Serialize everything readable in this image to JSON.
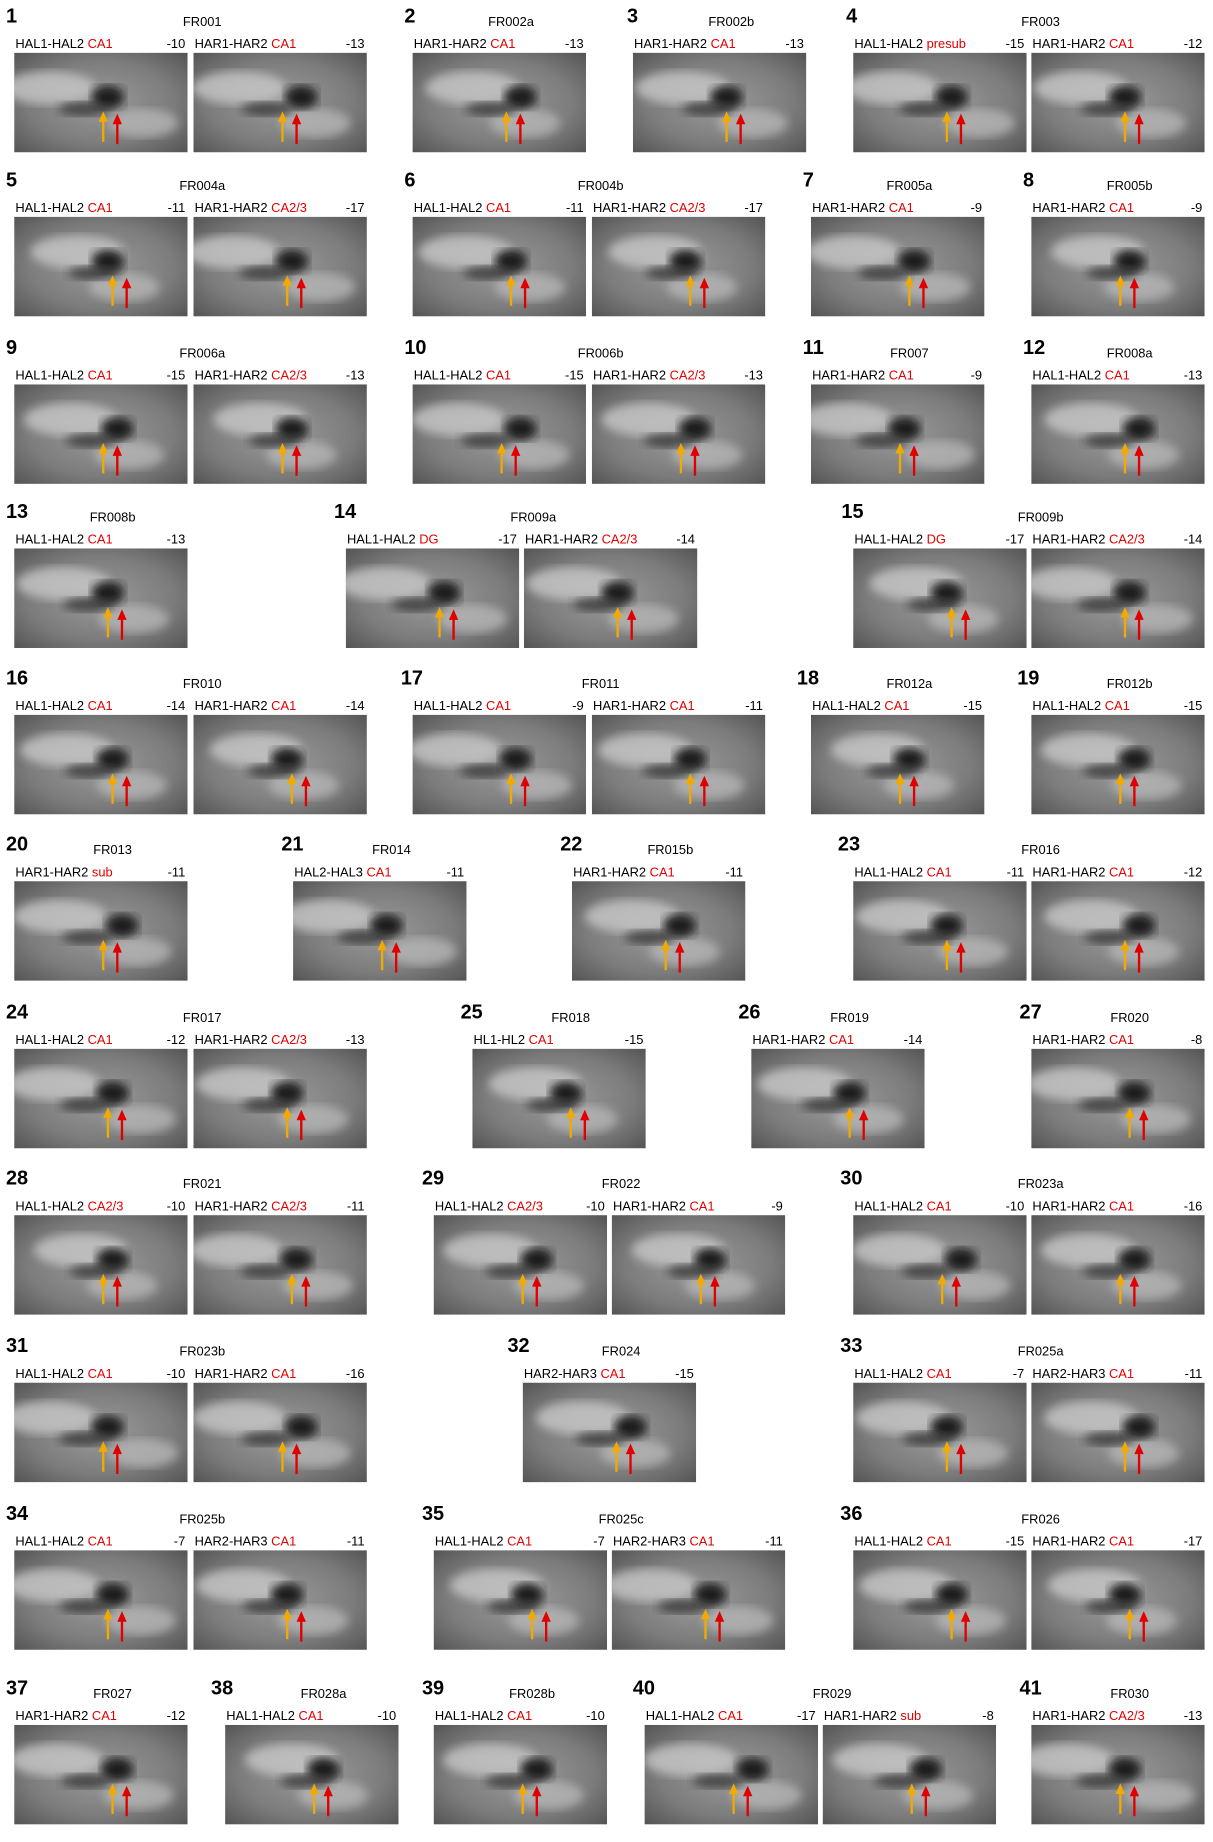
{
  "panels": [
    {
      "number": 1,
      "id": "FR001",
      "images": [
        {
          "contacts": "HAL1-HAL2",
          "region": "CA1",
          "value": -10
        },
        {
          "contacts": "HAR1-HAR2",
          "region": "CA1",
          "value": -13
        }
      ]
    },
    {
      "number": 2,
      "id": "FR002a",
      "images": [
        {
          "contacts": "HAR1-HAR2",
          "region": "CA1",
          "value": -13
        }
      ]
    },
    {
      "number": 3,
      "id": "FR002b",
      "images": [
        {
          "contacts": "HAR1-HAR2",
          "region": "CA1",
          "value": -13
        }
      ]
    },
    {
      "number": 4,
      "id": "FR003",
      "images": [
        {
          "contacts": "HAL1-HAL2",
          "region": "presub",
          "value": -15
        },
        {
          "contacts": "HAR1-HAR2",
          "region": "CA1",
          "value": -12
        }
      ]
    },
    {
      "number": 5,
      "id": "FR004a",
      "images": [
        {
          "contacts": "HAL1-HAL2",
          "region": "CA1",
          "value": -11
        },
        {
          "contacts": "HAR1-HAR2",
          "region": "CA2/3",
          "value": -17
        }
      ]
    },
    {
      "number": 6,
      "id": "FR004b",
      "images": [
        {
          "contacts": "HAL1-HAL2",
          "region": "CA1",
          "value": -11
        },
        {
          "contacts": "HAR1-HAR2",
          "region": "CA2/3",
          "value": -17
        }
      ]
    },
    {
      "number": 7,
      "id": "FR005a",
      "images": [
        {
          "contacts": "HAR1-HAR2",
          "region": "CA1",
          "value": -9
        }
      ]
    },
    {
      "number": 8,
      "id": "FR005b",
      "images": [
        {
          "contacts": "HAR1-HAR2",
          "region": "CA1",
          "value": -9
        }
      ]
    },
    {
      "number": 9,
      "id": "FR006a",
      "images": [
        {
          "contacts": "HAL1-HAL2",
          "region": "CA1",
          "value": -15
        },
        {
          "contacts": "HAR1-HAR2",
          "region": "CA2/3",
          "value": -13
        }
      ]
    },
    {
      "number": 10,
      "id": "FR006b",
      "images": [
        {
          "contacts": "HAL1-HAL2",
          "region": "CA1",
          "value": -15
        },
        {
          "contacts": "HAR1-HAR2",
          "region": "CA2/3",
          "value": -13
        }
      ]
    },
    {
      "number": 11,
      "id": "FR007",
      "images": [
        {
          "contacts": "HAR1-HAR2",
          "region": "CA1",
          "value": -9
        }
      ]
    },
    {
      "number": 12,
      "id": "FR008a",
      "images": [
        {
          "contacts": "HAL1-HAL2",
          "region": "CA1",
          "value": -13
        }
      ]
    },
    {
      "number": 13,
      "id": "FR008b",
      "images": [
        {
          "contacts": "HAL1-HAL2",
          "region": "CA1",
          "value": -13
        }
      ]
    },
    {
      "number": 14,
      "id": "FR009a",
      "images": [
        {
          "contacts": "HAL1-HAL2",
          "region": "DG",
          "value": -17
        },
        {
          "contacts": "HAR1-HAR2",
          "region": "CA2/3",
          "value": -14
        }
      ]
    },
    {
      "number": 15,
      "id": "FR009b",
      "images": [
        {
          "contacts": "HAL1-HAL2",
          "region": "DG",
          "value": -17
        },
        {
          "contacts": "HAR1-HAR2",
          "region": "CA2/3",
          "value": -14
        }
      ]
    },
    {
      "number": 16,
      "id": "FR010",
      "images": [
        {
          "contacts": "HAL1-HAL2",
          "region": "CA1",
          "value": -14
        },
        {
          "contacts": "HAR1-HAR2",
          "region": "CA1",
          "value": -14
        }
      ]
    },
    {
      "number": 17,
      "id": "FR011",
      "images": [
        {
          "contacts": "HAL1-HAL2",
          "region": "CA1",
          "value": -9
        },
        {
          "contacts": "HAR1-HAR2",
          "region": "CA1",
          "value": -11
        }
      ]
    },
    {
      "number": 18,
      "id": "FR012a",
      "images": [
        {
          "contacts": "HAL1-HAL2",
          "region": "CA1",
          "value": -15
        }
      ]
    },
    {
      "number": 19,
      "id": "FR012b",
      "images": [
        {
          "contacts": "HAL1-HAL2",
          "region": "CA1",
          "value": -15
        }
      ]
    },
    {
      "number": 20,
      "id": "FR013",
      "images": [
        {
          "contacts": "HAR1-HAR2",
          "region": "sub",
          "value": -11
        }
      ]
    },
    {
      "number": 21,
      "id": "FR014",
      "images": [
        {
          "contacts": "HAL2-HAL3",
          "region": "CA1",
          "value": -11
        }
      ]
    },
    {
      "number": 22,
      "id": "FR015b",
      "images": [
        {
          "contacts": "HAR1-HAR2",
          "region": "CA1",
          "value": -11
        }
      ]
    },
    {
      "number": 23,
      "id": "FR016",
      "images": [
        {
          "contacts": "HAL1-HAL2",
          "region": "CA1",
          "value": -11
        },
        {
          "contacts": "HAR1-HAR2",
          "region": "CA1",
          "value": -12
        }
      ]
    },
    {
      "number": 24,
      "id": "FR017",
      "images": [
        {
          "contacts": "HAL1-HAL2",
          "region": "CA1",
          "value": -12
        },
        {
          "contacts": "HAR1-HAR2",
          "region": "CA2/3",
          "value": -13
        }
      ]
    },
    {
      "number": 25,
      "id": "FR018",
      "images": [
        {
          "contacts": "HL1-HL2",
          "region": "CA1",
          "value": -15
        }
      ]
    },
    {
      "number": 26,
      "id": "FR019",
      "images": [
        {
          "contacts": "HAR1-HAR2",
          "region": "CA1",
          "value": -14
        }
      ]
    },
    {
      "number": 27,
      "id": "FR020",
      "images": [
        {
          "contacts": "HAR1-HAR2",
          "region": "CA1",
          "value": -8
        }
      ]
    },
    {
      "number": 28,
      "id": "FR021",
      "images": [
        {
          "contacts": "HAL1-HAL2",
          "region": "CA2/3",
          "value": -10
        },
        {
          "contacts": "HAR1-HAR2",
          "region": "CA2/3",
          "value": -11
        }
      ]
    },
    {
      "number": 29,
      "id": "FR022",
      "images": [
        {
          "contacts": "HAL1-HAL2",
          "region": "CA2/3",
          "value": -10
        },
        {
          "contacts": "HAR1-HAR2",
          "region": "CA1",
          "value": -9
        }
      ]
    },
    {
      "number": 30,
      "id": "FR023a",
      "images": [
        {
          "contacts": "HAL1-HAL2",
          "region": "CA1",
          "value": -10
        },
        {
          "contacts": "HAR1-HAR2",
          "region": "CA1",
          "value": -16
        }
      ]
    },
    {
      "number": 31,
      "id": "FR023b",
      "images": [
        {
          "contacts": "HAL1-HAL2",
          "region": "CA1",
          "value": -10
        },
        {
          "contacts": "HAR1-HAR2",
          "region": "CA1",
          "value": -16
        }
      ]
    },
    {
      "number": 32,
      "id": "FR024",
      "images": [
        {
          "contacts": "HAR2-HAR3",
          "region": "CA1",
          "value": -15
        }
      ]
    },
    {
      "number": 33,
      "id": "FR025a",
      "images": [
        {
          "contacts": "HAL1-HAL2",
          "region": "CA1",
          "value": -7
        },
        {
          "contacts": "HAR2-HAR3",
          "region": "CA1",
          "value": -11
        }
      ]
    },
    {
      "number": 34,
      "id": "FR025b",
      "images": [
        {
          "contacts": "HAL1-HAL2",
          "region": "CA1",
          "value": -7
        },
        {
          "contacts": "HAR2-HAR3",
          "region": "CA1",
          "value": -11
        }
      ]
    },
    {
      "number": 35,
      "id": "FR025c",
      "images": [
        {
          "contacts": "HAL1-HAL2",
          "region": "CA1",
          "value": -7
        },
        {
          "contacts": "HAR2-HAR3",
          "region": "CA1",
          "value": -11
        }
      ]
    },
    {
      "number": 36,
      "id": "FR026",
      "images": [
        {
          "contacts": "HAL1-HAL2",
          "region": "CA1",
          "value": -15
        },
        {
          "contacts": "HAR1-HAR2",
          "region": "CA1",
          "value": -17
        }
      ]
    },
    {
      "number": 37,
      "id": "FR027",
      "images": [
        {
          "contacts": "HAR1-HAR2",
          "region": "CA1",
          "value": -12
        }
      ]
    },
    {
      "number": 38,
      "id": "FR028a",
      "images": [
        {
          "contacts": "HAL1-HAL2",
          "region": "CA1",
          "value": -10
        }
      ]
    },
    {
      "number": 39,
      "id": "FR028b",
      "images": [
        {
          "contacts": "HAL1-HAL2",
          "region": "CA1",
          "value": -10
        }
      ]
    },
    {
      "number": 40,
      "id": "FR029",
      "images": [
        {
          "contacts": "HAL1-HAL2",
          "region": "CA1",
          "value": -17
        },
        {
          "contacts": "HAR1-HAR2",
          "region": "sub",
          "value": -8
        }
      ]
    },
    {
      "number": 41,
      "id": "FR030",
      "images": [
        {
          "contacts": "HAR1-HAR2",
          "region": "CA2/3",
          "value": -13
        }
      ]
    }
  ]
}
